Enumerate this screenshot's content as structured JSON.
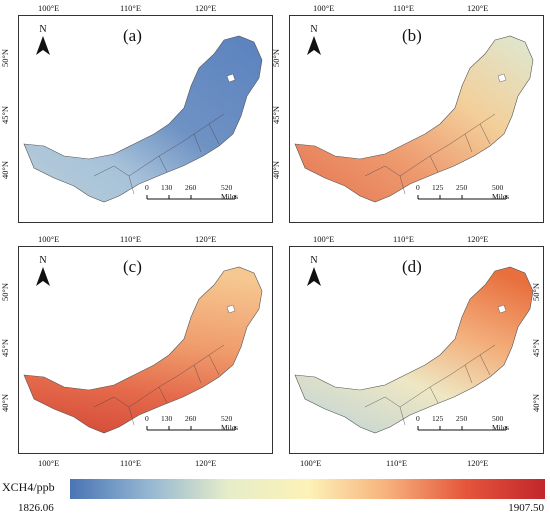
{
  "panels": [
    {
      "label": "(a)",
      "scale": [
        "0",
        "130",
        "260",
        "520 Miles"
      ]
    },
    {
      "label": "(b)",
      "scale": [
        "0",
        "125",
        "250",
        "500 Miles"
      ]
    },
    {
      "label": "(c)",
      "scale": [
        "0",
        "130",
        "260",
        "520 Miles"
      ]
    },
    {
      "label": "(d)",
      "scale": [
        "0",
        "125",
        "250",
        "500 Miles"
      ]
    }
  ],
  "axes": {
    "lon_top_labels": [
      "100°E",
      "110°E",
      "120°E"
    ],
    "lon_bottom_labels": [
      "100°E",
      "110°E",
      "120°E"
    ],
    "lat_labels": [
      "50°N",
      "45°N",
      "40°N"
    ]
  },
  "north_label": "N",
  "legend": {
    "title": "XCH4/ppb",
    "min": "1826.06",
    "max": "1907.50",
    "colors": [
      "#4a74b4",
      "#95b7d3",
      "#e6edc9",
      "#fdf2b8",
      "#f7b27c",
      "#e5553b",
      "#c2262b"
    ]
  }
}
